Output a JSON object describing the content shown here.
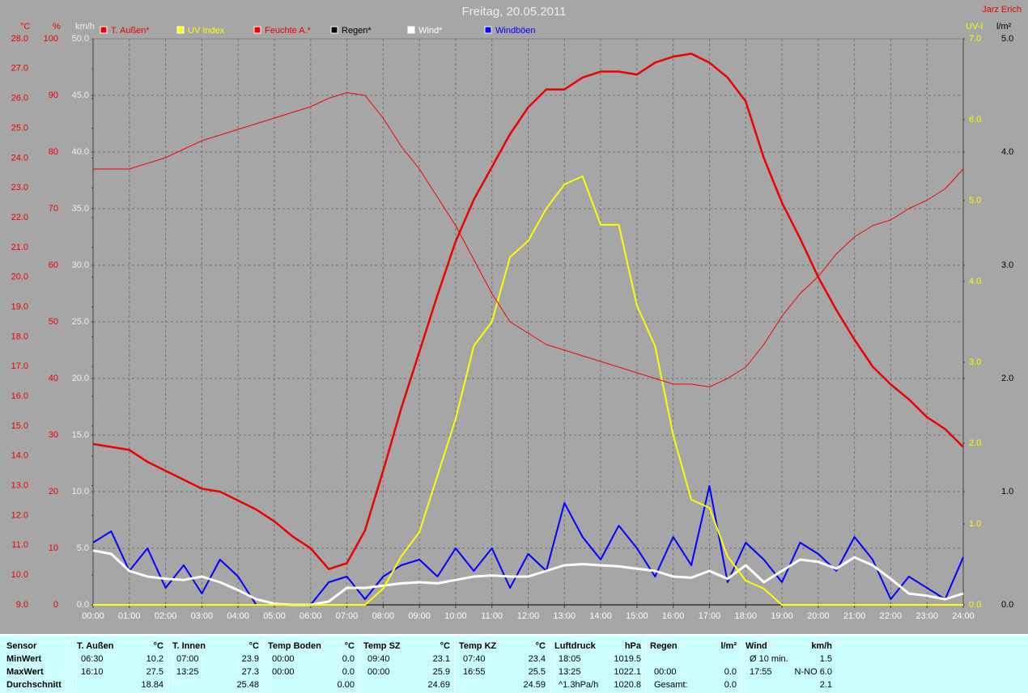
{
  "chart_data": {
    "type": "line",
    "title": "Freitag, 20.05.2011",
    "author": "Jarz Erich",
    "x": [
      0,
      0.5,
      1,
      1.5,
      2,
      2.5,
      3,
      3.5,
      4,
      4.5,
      5,
      5.5,
      6,
      6.5,
      7,
      7.5,
      8,
      8.5,
      9,
      9.5,
      10,
      10.5,
      11,
      11.5,
      12,
      12.5,
      13,
      13.5,
      14,
      14.5,
      15,
      15.5,
      16,
      16.5,
      17,
      17.5,
      18,
      18.5,
      19,
      19.5,
      20,
      20.5,
      21,
      21.5,
      22,
      22.5,
      23,
      23.5,
      24
    ],
    "xlim": [
      0,
      24
    ],
    "xticks": [
      {
        "value": 0,
        "label": "00:00"
      },
      {
        "value": 1,
        "label": "01:00"
      },
      {
        "value": 2,
        "label": "02:00"
      },
      {
        "value": 3,
        "label": "03:00"
      },
      {
        "value": 4,
        "label": "04:00"
      },
      {
        "value": 5,
        "label": "05:00"
      },
      {
        "value": 6,
        "label": "06:00"
      },
      {
        "value": 7,
        "label": "07:00"
      },
      {
        "value": 8,
        "label": "08:00"
      },
      {
        "value": 9,
        "label": "09:00"
      },
      {
        "value": 10,
        "label": "10:00"
      },
      {
        "value": 11,
        "label": "11:00"
      },
      {
        "value": 12,
        "label": "12:00"
      },
      {
        "value": 13,
        "label": "13:00"
      },
      {
        "value": 14,
        "label": "14:00"
      },
      {
        "value": 15,
        "label": "15:00"
      },
      {
        "value": 16,
        "label": "16:00"
      },
      {
        "value": 17,
        "label": "17:00"
      },
      {
        "value": 18,
        "label": "18:00"
      },
      {
        "value": 19,
        "label": "19:00"
      },
      {
        "value": 20,
        "label": "20:00"
      },
      {
        "value": 21,
        "label": "21:00"
      },
      {
        "value": 22,
        "label": "22:00"
      },
      {
        "value": 23,
        "label": "23:00"
      },
      {
        "value": 24,
        "label": "24:00"
      }
    ],
    "ylabel": "°C",
    "ylim": [
      9,
      28
    ],
    "yticks": [
      {
        "value": 9,
        "label": "9.0"
      },
      {
        "value": 10,
        "label": "10.0"
      },
      {
        "value": 11,
        "label": "11.0"
      },
      {
        "value": 12,
        "label": "12.0"
      },
      {
        "value": 13,
        "label": "13.0"
      },
      {
        "value": 14,
        "label": "14.0"
      },
      {
        "value": 15,
        "label": "15.0"
      },
      {
        "value": 16,
        "label": "16.0"
      },
      {
        "value": 17,
        "label": "17.0"
      },
      {
        "value": 18,
        "label": "18.0"
      },
      {
        "value": 19,
        "label": "19.0"
      },
      {
        "value": 20,
        "label": "20.0"
      },
      {
        "value": 21,
        "label": "21.0"
      },
      {
        "value": 22,
        "label": "22.0"
      },
      {
        "value": 23,
        "label": "23.0"
      },
      {
        "value": 24,
        "label": "24.0"
      },
      {
        "value": 25,
        "label": "25.0"
      },
      {
        "value": 26,
        "label": "26.0"
      },
      {
        "value": 27,
        "label": "27.0"
      },
      {
        "value": 28,
        "label": "28.0"
      }
    ],
    "y2label": "%",
    "y2lim": [
      0,
      100
    ],
    "y2ticks": [
      0,
      10,
      20,
      30,
      40,
      50,
      60,
      70,
      80,
      90,
      100
    ],
    "y3label": "km/h",
    "y3lim": [
      0,
      50
    ],
    "y3ticks": [
      {
        "value": 0,
        "label": "0.0"
      },
      {
        "value": 5,
        "label": "5.0"
      },
      {
        "value": 10,
        "label": "10.0"
      },
      {
        "value": 15,
        "label": "15.0"
      },
      {
        "value": 20,
        "label": "20.0"
      },
      {
        "value": 25,
        "label": "25.0"
      },
      {
        "value": 30,
        "label": "30.0"
      },
      {
        "value": 35,
        "label": "35.0"
      },
      {
        "value": 40,
        "label": "40.0"
      },
      {
        "value": 45,
        "label": "45.0"
      },
      {
        "value": 50,
        "label": "50.0"
      }
    ],
    "y4label": "UV-I",
    "y4lim": [
      0,
      7
    ],
    "y4ticks": [
      {
        "value": 0,
        "label": "0.0"
      },
      {
        "value": 1,
        "label": "1.0"
      },
      {
        "value": 2,
        "label": "2.0"
      },
      {
        "value": 3,
        "label": "3.0"
      },
      {
        "value": 4,
        "label": "4.0"
      },
      {
        "value": 5,
        "label": "5.0"
      },
      {
        "value": 6,
        "label": "6.0"
      },
      {
        "value": 7,
        "label": "7.0"
      }
    ],
    "y5label": "l/m²",
    "y5lim": [
      0,
      5
    ],
    "y5ticks": [
      {
        "value": 0,
        "label": "0.0"
      },
      {
        "value": 1,
        "label": "1.0"
      },
      {
        "value": 2,
        "label": "2.0"
      },
      {
        "value": 3,
        "label": "3.0"
      },
      {
        "value": 4,
        "label": "4.0"
      },
      {
        "value": 5,
        "label": "5.0"
      }
    ],
    "grid": true,
    "series": [
      {
        "name": "T. Außen*",
        "color": "#ee0000",
        "axis": "y",
        "width": 2.5,
        "values": [
          14.4,
          14.3,
          14.2,
          13.8,
          13.5,
          13.2,
          12.9,
          12.8,
          12.5,
          12.2,
          11.8,
          11.3,
          10.9,
          10.2,
          10.4,
          11.5,
          13.5,
          15.6,
          17.5,
          19.4,
          21.2,
          22.6,
          23.7,
          24.8,
          25.7,
          26.3,
          26.3,
          26.7,
          26.9,
          26.9,
          26.8,
          27.2,
          27.4,
          27.5,
          27.2,
          26.7,
          25.9,
          24.0,
          22.5,
          21.3,
          20.0,
          18.9,
          17.9,
          17.0,
          16.4,
          15.9,
          15.3,
          14.9,
          14.3
        ]
      },
      {
        "name": "UV Index",
        "color": "#ffff00",
        "axis": "y4",
        "width": 2,
        "values": [
          0,
          0,
          0,
          0,
          0,
          0,
          0,
          0,
          0,
          0,
          0,
          0,
          0,
          0,
          0,
          0,
          0.2,
          0.6,
          0.9,
          1.6,
          2.3,
          3.2,
          3.5,
          4.3,
          4.5,
          4.9,
          5.2,
          5.3,
          4.7,
          4.7,
          3.7,
          3.2,
          2.1,
          1.3,
          1.2,
          0.6,
          0.3,
          0.2,
          0,
          0,
          0,
          0,
          0,
          0,
          0,
          0,
          0,
          0,
          0
        ]
      },
      {
        "name": "Feuchte A.*",
        "color": "#ee0000",
        "axis": "y2",
        "width": 1,
        "values": [
          77,
          77,
          77,
          78,
          79,
          80.5,
          82,
          83,
          84,
          85,
          86,
          87,
          88,
          89.5,
          90.5,
          90,
          86,
          81,
          77,
          72,
          67,
          61,
          55,
          50,
          48,
          46,
          45,
          44,
          43,
          42,
          41,
          40,
          39,
          39,
          38.5,
          40,
          42,
          46,
          51,
          55,
          58,
          62,
          65,
          67,
          68,
          70,
          71.5,
          73.5,
          77
        ]
      },
      {
        "name": "Regen*",
        "color": "#000000",
        "axis": "y5",
        "width": 1,
        "values": [
          0,
          0,
          0,
          0,
          0,
          0,
          0,
          0,
          0,
          0,
          0,
          0,
          0,
          0,
          0,
          0,
          0,
          0,
          0,
          0,
          0,
          0,
          0,
          0,
          0,
          0,
          0,
          0,
          0,
          0,
          0,
          0,
          0,
          0,
          0,
          0,
          0,
          0,
          0,
          0,
          0,
          0,
          0,
          0,
          0,
          0,
          0,
          0,
          0
        ]
      },
      {
        "name": "Wind*",
        "color": "#ffffff",
        "axis": "y3",
        "width": 3,
        "values": [
          4.8,
          4.5,
          3.0,
          2.5,
          2.3,
          2.2,
          2.5,
          2.0,
          1.3,
          0.5,
          0.1,
          0,
          0,
          0.3,
          1.5,
          1.5,
          1.7,
          1.9,
          2.0,
          1.9,
          2.2,
          2.5,
          2.6,
          2.5,
          2.5,
          3.0,
          3.5,
          3.6,
          3.5,
          3.4,
          3.2,
          3.0,
          2.5,
          2.4,
          3.0,
          2.3,
          3.5,
          2.0,
          3.0,
          4.0,
          3.8,
          3.2,
          4.2,
          3.5,
          2.3,
          1.0,
          0.8,
          0.5,
          1.0
        ]
      },
      {
        "name": "Windböen",
        "color": "#0000ff",
        "axis": "y3",
        "width": 2,
        "values": [
          5.5,
          6.5,
          3.0,
          5.0,
          1.5,
          3.5,
          1.0,
          4.0,
          2.5,
          0,
          0,
          0,
          0,
          2.0,
          2.5,
          0.5,
          2.5,
          3.5,
          4.0,
          2.5,
          5.0,
          3.0,
          5.0,
          1.5,
          4.5,
          3.0,
          9.0,
          6.0,
          4.0,
          7.0,
          5.0,
          2.5,
          6.0,
          3.5,
          10.5,
          2.0,
          5.5,
          4.0,
          2.0,
          5.5,
          4.5,
          3.0,
          6.0,
          4.0,
          0.5,
          2.5,
          1.5,
          0.5,
          4.2
        ]
      }
    ]
  },
  "table": {
    "row_labels": [
      "Sensor",
      "MinWert",
      "MaxWert",
      "Durchschnitt"
    ],
    "groups": [
      {
        "name": "T. Außen",
        "unit": "°C",
        "min": [
          "06:30",
          "10.2"
        ],
        "max": [
          "16:10",
          "27.5"
        ],
        "avg": [
          "18.84"
        ]
      },
      {
        "name": "T. Innen",
        "unit": "°C",
        "min": [
          "07:00",
          "23.9"
        ],
        "max": [
          "13:25",
          "27.3"
        ],
        "avg": [
          "25.48"
        ]
      },
      {
        "name": "Temp Boden",
        "unit": "°C",
        "min": [
          "00:00",
          "0.0"
        ],
        "max": [
          "00:00",
          "0.0"
        ],
        "avg": [
          "0.00"
        ]
      },
      {
        "name": "Temp SZ",
        "unit": "°C",
        "min": [
          "09:40",
          "23.1"
        ],
        "max": [
          "00:00",
          "25.9"
        ],
        "avg": [
          "24.69"
        ]
      },
      {
        "name": "Temp KZ",
        "unit": "°C",
        "min": [
          "07:40",
          "23.4"
        ],
        "max": [
          "16:55",
          "25.5"
        ],
        "avg": [
          "24.59"
        ]
      },
      {
        "name": "Luftdruck",
        "unit": "hPa",
        "min": [
          "18:05",
          "1019.5"
        ],
        "max": [
          "13:25",
          "1022.1"
        ],
        "avg": [
          "^1.3hPa/h",
          "1020.8"
        ]
      },
      {
        "name": "Regen",
        "unit": "l/m²",
        "min": [],
        "max": [
          "00:00",
          "0.0"
        ],
        "avg": [
          "Gesamt:",
          "0.0"
        ]
      },
      {
        "name": "Wind",
        "unit": "km/h",
        "min": [
          "Ø 10 min.",
          "1.5"
        ],
        "max": [
          "17:55",
          "N-NO 6.0"
        ],
        "avg": [
          "2.1"
        ]
      }
    ]
  }
}
